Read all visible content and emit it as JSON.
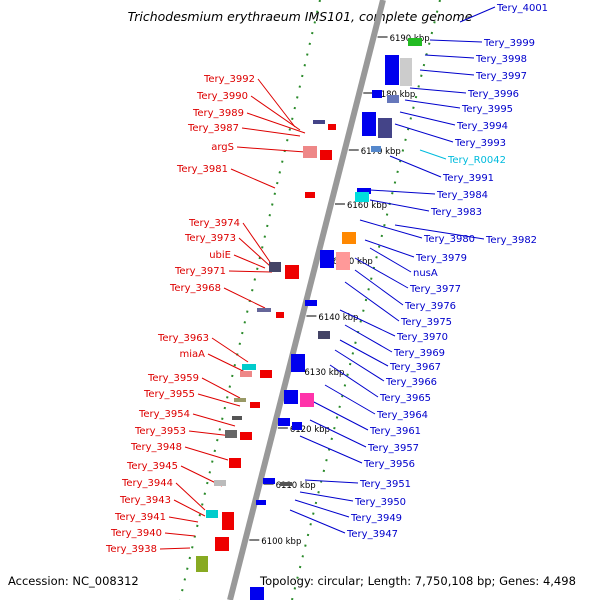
{
  "title": "Trichodesmium erythraeum IMS101, complete genome",
  "footer": {
    "accession": "Accession: NC_008312",
    "topology": "Topology: circular; Length: 7,750,108 bp; Genes: 4,498"
  },
  "colors": {
    "forward_label": "#0000cc",
    "reverse_label": "#dd0000",
    "rna_label": "#00bbdd",
    "backbone": "#999999",
    "dotted_track": "#2a8a2a"
  },
  "kbp_ticks": [
    "6190 kbp",
    "6180 kbp",
    "6170 kbp",
    "6160 kbp",
    "6150 kbp",
    "6140 kbp",
    "6130 kbp",
    "6120 kbp",
    "6110 kbp",
    "6100 kbp"
  ],
  "reverse_genes": [
    "Tery_3992",
    "Tery_3990",
    "Tery_3989",
    "Tery_3987",
    "argS",
    "Tery_3981",
    "Tery_3974",
    "Tery_3973",
    "ubiE",
    "Tery_3971",
    "Tery_3968",
    "Tery_3963",
    "miaA",
    "Tery_3959",
    "Tery_3955",
    "Tery_3954",
    "Tery_3953",
    "Tery_3948",
    "Tery_3945",
    "Tery_3944",
    "Tery_3943",
    "Tery_3941",
    "Tery_3940",
    "Tery_3938"
  ],
  "forward_genes": [
    "Tery_4001",
    "Tery_3999",
    "Tery_3998",
    "Tery_3997",
    "Tery_3996",
    "Tery_3995",
    "Tery_3994",
    "Tery_3993",
    "Tery_R0042",
    "Tery_3991",
    "Tery_3984",
    "Tery_3983",
    "Tery_3980",
    "Tery_3982",
    "Tery_3979",
    "nusA",
    "Tery_3977",
    "Tery_3976",
    "Tery_3975",
    "Tery_3970",
    "Tery_3969",
    "Tery_3967",
    "Tery_3966",
    "Tery_3965",
    "Tery_3964",
    "Tery_3961",
    "Tery_3957",
    "Tery_3956",
    "Tery_3951",
    "Tery_3950",
    "Tery_3949",
    "Tery_3947"
  ],
  "rna_genes": [
    "Tery_R0042"
  ]
}
